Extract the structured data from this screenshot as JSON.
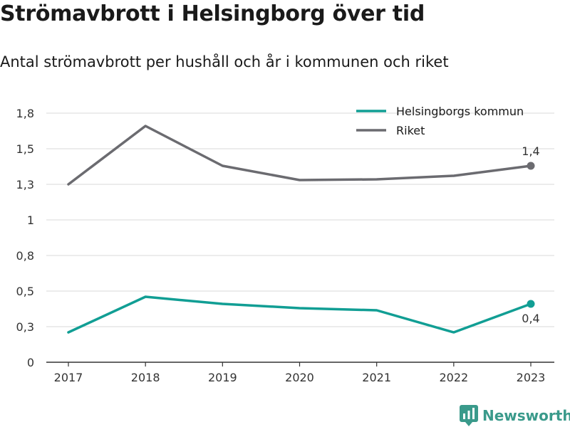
{
  "title": "Strömavbrott i Helsingborg över tid",
  "subtitle": "Antal strömavbrott per hushåll och år i kommunen och riket",
  "brand": {
    "name": "Newsworthy",
    "icon": "newsworthy-logo-icon"
  },
  "colors": {
    "helsingborg": "#119e94",
    "riket": "#6b6b70",
    "grid": "#d9d9d9",
    "axis": "#333333"
  },
  "chart_data": {
    "type": "line",
    "x": [
      "2017",
      "2018",
      "2019",
      "2020",
      "2021",
      "2022",
      "2023"
    ],
    "ylim": [
      0,
      1.75
    ],
    "yticks": [
      0,
      0.25,
      0.5,
      0.75,
      1,
      1.25,
      1.5,
      1.75
    ],
    "ytick_labels": [
      "0",
      "0,3",
      "0,5",
      "0,8",
      "1",
      "1,3",
      "1,5",
      "1,8"
    ],
    "grid": true,
    "legend": "top-right",
    "series": [
      {
        "name": "Helsingborgs kommun",
        "key": "helsingborg",
        "values": [
          0.21,
          0.46,
          0.41,
          0.38,
          0.365,
          0.21,
          0.41
        ],
        "end_label": "0,4",
        "end_label_position": "below"
      },
      {
        "name": "Riket",
        "key": "riket",
        "values": [
          1.25,
          1.66,
          1.38,
          1.28,
          1.285,
          1.31,
          1.38
        ],
        "end_label": "1,4",
        "end_label_position": "above"
      }
    ]
  }
}
